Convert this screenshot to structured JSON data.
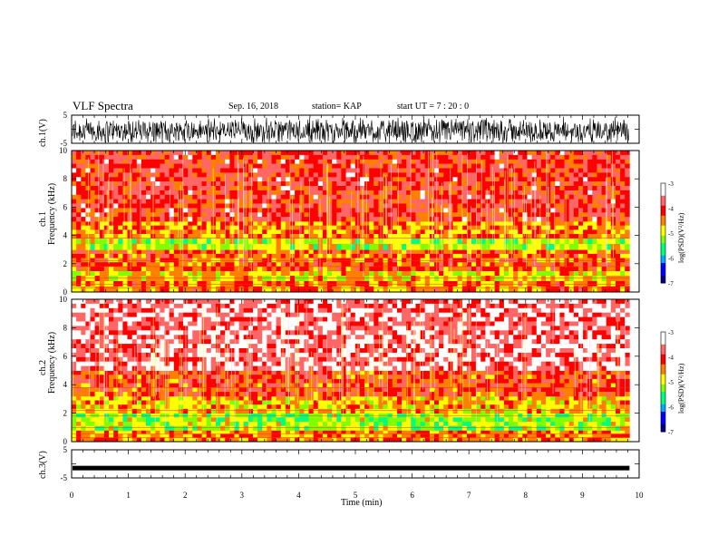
{
  "header": {
    "title": "VLF Spectra",
    "date": "Sep. 16, 2018",
    "station": "station= KAP",
    "start_ut": "start UT =   7 : 20 : 0"
  },
  "panels": {
    "ch1_wave_label": "ch.1(V)",
    "ch1_spec_label_a": "ch.1",
    "ch1_spec_label_b": "Frequency (kHz)",
    "ch2_spec_label_a": "ch.2",
    "ch2_spec_label_b": "Frequency (kHz)",
    "ch3_wave_label": "ch.3(V)",
    "colorbar_label": "log(PSD)(V²/Hz)",
    "xlabel": "Time (min)"
  },
  "colors": {
    "colormap": [
      "#000080",
      "#0000ff",
      "#00aaff",
      "#00ff80",
      "#80ff00",
      "#ffff00",
      "#ff8000",
      "#ff0000",
      "#ff6666",
      "#ffffff"
    ]
  },
  "chart_data": [
    {
      "type": "line",
      "name": "ch.1 waveform",
      "ylabel": "ch.1(V)",
      "ylim": [
        -5,
        5
      ],
      "yticks": [
        "5",
        "-5"
      ],
      "xlim": [
        0,
        10
      ],
      "x_extent_min": [
        0,
        9.83
      ],
      "description_values": {
        "amplitude_range_V": [
          -5,
          5
        ]
      }
    },
    {
      "type": "heatmap",
      "name": "ch.1 spectrogram",
      "xlabel": "",
      "ylabel": "Frequency (kHz)",
      "xlim": [
        0,
        10
      ],
      "ylim": [
        0,
        10
      ],
      "yticks": [
        "0",
        "2",
        "4",
        "6",
        "8",
        "10"
      ],
      "bands_kHz_logPSD": [
        {
          "from": 0,
          "to": 0.8,
          "logPSD": -4.3
        },
        {
          "from": 0.8,
          "to": 1.5,
          "logPSD": -4.7
        },
        {
          "from": 1.5,
          "to": 3.0,
          "logPSD": -4.2
        },
        {
          "from": 3.0,
          "to": 3.8,
          "logPSD": -5.0
        },
        {
          "from": 3.8,
          "to": 5.0,
          "logPSD": -4.4
        },
        {
          "from": 5.0,
          "to": 10.0,
          "logPSD": -3.9
        }
      ],
      "colorbar": {
        "label": "log(PSD)(V²/Hz)",
        "range": [
          -7,
          -3
        ],
        "ticks": [
          "-3",
          "-4",
          "-5",
          "-6",
          "-7"
        ]
      }
    },
    {
      "type": "heatmap",
      "name": "ch.2 spectrogram",
      "ylabel": "Frequency (kHz)",
      "xlim": [
        0,
        10
      ],
      "ylim": [
        0,
        10
      ],
      "yticks": [
        "0",
        "2",
        "4",
        "6",
        "8",
        "10"
      ],
      "bands_kHz_logPSD": [
        {
          "from": 0,
          "to": 0.8,
          "logPSD": -4.4
        },
        {
          "from": 0.8,
          "to": 2.0,
          "logPSD": -5.1
        },
        {
          "from": 2.0,
          "to": 3.2,
          "logPSD": -4.6
        },
        {
          "from": 3.2,
          "to": 5.0,
          "logPSD": -4.1
        },
        {
          "from": 5.0,
          "to": 10.0,
          "logPSD": -3.5
        }
      ],
      "colorbar": {
        "label": "log(PSD)(V²/Hz)",
        "range": [
          -7,
          -3
        ],
        "ticks": [
          "-3",
          "-4",
          "-5",
          "-6",
          "-7"
        ]
      }
    },
    {
      "type": "line",
      "name": "ch.3 waveform",
      "ylabel": "ch.3(V)",
      "ylim": [
        -5,
        5
      ],
      "yticks": [
        "5",
        "-5"
      ],
      "xlim": [
        0,
        10
      ],
      "constant_value_V": -1.5,
      "xlabel": "Time (min)",
      "xticks": [
        "0",
        "1",
        "2",
        "3",
        "4",
        "5",
        "6",
        "7",
        "8",
        "9",
        "10"
      ]
    }
  ]
}
